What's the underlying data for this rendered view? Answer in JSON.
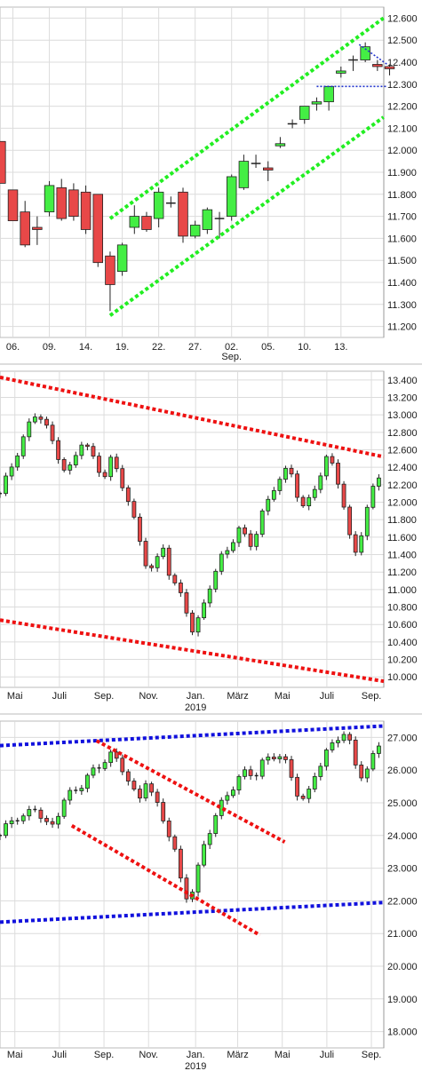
{
  "colors": {
    "up": "#44ee44",
    "down": "#e84848",
    "doji": "#333333",
    "trend_green": "#22ee22",
    "trend_red": "#ee1111",
    "trend_blue": "#1111dd",
    "trend_blue_thin": "#2233cc"
  },
  "chart_data": [
    {
      "type": "candlestick",
      "title": "",
      "ylim": [
        11150,
        12650
      ],
      "y_ticks": [
        "12.600",
        "12.500",
        "12.400",
        "12.300",
        "12.200",
        "12.100",
        "12.000",
        "11.900",
        "11.800",
        "11.700",
        "11.600",
        "11.500",
        "11.400",
        "11.300",
        "11.200"
      ],
      "y_tick_values": [
        12600,
        12500,
        12400,
        12300,
        12200,
        12100,
        12000,
        11900,
        11800,
        11700,
        11600,
        11500,
        11400,
        11300,
        11200
      ],
      "x_labels": [
        {
          "text": "06.",
          "index": 1
        },
        {
          "text": "09.",
          "index": 4
        },
        {
          "text": "14.",
          "index": 7
        },
        {
          "text": "19.",
          "index": 10
        },
        {
          "text": "22.",
          "index": 13
        },
        {
          "text": "27.",
          "index": 16
        },
        {
          "text": "02.",
          "index": 19
        },
        {
          "text": "05.",
          "index": 22
        },
        {
          "text": "10.",
          "index": 25
        },
        {
          "text": "13.",
          "index": 28
        }
      ],
      "x_sublabel": {
        "text": "Sep.",
        "index": 19
      },
      "n_slots": 31,
      "candles": [
        {
          "o": 12040,
          "h": 12040,
          "l": 11850,
          "c": 11850
        },
        {
          "o": 11820,
          "h": 11820,
          "l": 11680,
          "c": 11680
        },
        {
          "o": 11720,
          "h": 11770,
          "l": 11560,
          "c": 11570
        },
        {
          "o": 11650,
          "h": 11700,
          "l": 11570,
          "c": 11640
        },
        {
          "o": 11720,
          "h": 11860,
          "l": 11700,
          "c": 11840
        },
        {
          "o": 11830,
          "h": 11870,
          "l": 11680,
          "c": 11690
        },
        {
          "o": 11820,
          "h": 11850,
          "l": 11680,
          "c": 11700
        },
        {
          "o": 11810,
          "h": 11840,
          "l": 11620,
          "c": 11640
        },
        {
          "o": 11800,
          "h": 11800,
          "l": 11470,
          "c": 11490
        },
        {
          "o": 11520,
          "h": 11540,
          "l": 11270,
          "c": 11390
        },
        {
          "o": 11450,
          "h": 11580,
          "l": 11430,
          "c": 11570
        },
        {
          "o": 11650,
          "h": 11750,
          "l": 11620,
          "c": 11700
        },
        {
          "o": 11700,
          "h": 11720,
          "l": 11630,
          "c": 11640
        },
        {
          "o": 11690,
          "h": 11830,
          "l": 11650,
          "c": 11810
        },
        {
          "o": 11760,
          "h": 11790,
          "l": 11740,
          "c": 11760
        },
        {
          "o": 11810,
          "h": 11830,
          "l": 11580,
          "c": 11610
        },
        {
          "o": 11610,
          "h": 11680,
          "l": 11600,
          "c": 11660
        },
        {
          "o": 11640,
          "h": 11740,
          "l": 11620,
          "c": 11730
        },
        {
          "o": 11690,
          "h": 11720,
          "l": 11600,
          "c": 11690
        },
        {
          "o": 11700,
          "h": 11890,
          "l": 11680,
          "c": 11880
        },
        {
          "o": 11830,
          "h": 11980,
          "l": 11820,
          "c": 11950
        },
        {
          "o": 11940,
          "h": 11980,
          "l": 11920,
          "c": 11940
        },
        {
          "o": 11920,
          "h": 11950,
          "l": 11860,
          "c": 11910
        },
        {
          "o": 12020,
          "h": 12060,
          "l": 12010,
          "c": 12030
        },
        {
          "o": 12120,
          "h": 12140,
          "l": 12100,
          "c": 12120
        },
        {
          "o": 12140,
          "h": 12200,
          "l": 12120,
          "c": 12200
        },
        {
          "o": 12210,
          "h": 12240,
          "l": 12180,
          "c": 12220
        },
        {
          "o": 12220,
          "h": 12290,
          "l": 12180,
          "c": 12290
        },
        {
          "o": 12350,
          "h": 12380,
          "l": 12330,
          "c": 12360
        },
        {
          "o": 12410,
          "h": 12430,
          "l": 12360,
          "c": 12410
        },
        {
          "o": 12410,
          "h": 12490,
          "l": 12400,
          "c": 12470
        }
      ],
      "candles_tail": [
        {
          "o": 12390,
          "h": 12410,
          "l": 12360,
          "c": 12380
        },
        {
          "o": 12380,
          "h": 12390,
          "l": 12340,
          "c": 12370
        }
      ],
      "trendlines": [
        {
          "style": "trend_green",
          "x0": 9.0,
          "y0": 11690,
          "x1": 31.5,
          "y1": 12600
        },
        {
          "style": "trend_green",
          "x0": 9.0,
          "y0": 11250,
          "x1": 31.5,
          "y1": 12150
        },
        {
          "style": "trend_blue_thin",
          "x0": 26.0,
          "y0": 12290,
          "x1": 31.8,
          "y1": 12290
        },
        {
          "style": "trend_blue_thin",
          "x0": 29.5,
          "y0": 12480,
          "x1": 31.8,
          "y1": 12390
        }
      ]
    },
    {
      "type": "candlestick",
      "title": "",
      "ylim": [
        9880,
        13500
      ],
      "y_ticks": [
        "13.400",
        "13.200",
        "13.000",
        "12.800",
        "12.600",
        "12.400",
        "12.200",
        "12.000",
        "11.800",
        "11.600",
        "11.400",
        "11.200",
        "11.000",
        "10.800",
        "10.600",
        "10.400",
        "10.200",
        "10.000"
      ],
      "y_tick_values": [
        13400,
        13200,
        13000,
        12800,
        12600,
        12400,
        12200,
        12000,
        11800,
        11600,
        11400,
        11200,
        11000,
        10800,
        10600,
        10400,
        10200,
        10000
      ],
      "x_labels": [
        {
          "text": "Mai",
          "index": 0.6
        },
        {
          "text": "Juli",
          "index": 2.4
        },
        {
          "text": "Sep.",
          "index": 4.2
        },
        {
          "text": "Nov.",
          "index": 6.0
        },
        {
          "text": "Jan.",
          "index": 7.9
        },
        {
          "text": "März",
          "index": 9.6
        },
        {
          "text": "Mai",
          "index": 11.4
        },
        {
          "text": "Juli",
          "index": 13.2
        },
        {
          "text": "Sep.",
          "index": 15.0
        }
      ],
      "x_sublabel": {
        "text": "2019",
        "index": 7.9
      },
      "months_span": 15.5,
      "series": [
        12100,
        12300,
        12500,
        12700,
        12900,
        13050,
        12900,
        12700,
        12500,
        12300,
        12500,
        12700,
        12600,
        12400,
        12300,
        12500,
        12300,
        12100,
        11800,
        11500,
        11200,
        11300,
        11500,
        11100,
        11000,
        10800,
        10500,
        10700,
        11000,
        11200,
        11400,
        11500,
        11700,
        11600,
        11500,
        11800,
        12000,
        12200,
        12300,
        12400,
        12100,
        11900,
        12100,
        12300,
        12500,
        12400,
        12100,
        11600,
        11400,
        11800,
        12100,
        12300
      ],
      "trendlines": [
        {
          "style": "trend_red",
          "x0": 0,
          "y0": 13430,
          "x1": 15.5,
          "y1": 12520
        },
        {
          "style": "trend_red",
          "x0": 0,
          "y0": 10650,
          "x1": 15.5,
          "y1": 9950
        }
      ]
    },
    {
      "type": "candlestick",
      "title": "",
      "ylim": [
        17500,
        27500
      ],
      "y_ticks": [
        "27.000",
        "26.000",
        "25.000",
        "24.000",
        "23.000",
        "22.000",
        "21.000",
        "20.000",
        "19.000",
        "18.000"
      ],
      "y_tick_values": [
        27000,
        26000,
        25000,
        24000,
        23000,
        22000,
        21000,
        20000,
        19000,
        18000
      ],
      "x_labels": [
        {
          "text": "Mai",
          "index": 0.6
        },
        {
          "text": "Juli",
          "index": 2.4
        },
        {
          "text": "Sep.",
          "index": 4.2
        },
        {
          "text": "Nov.",
          "index": 6.0
        },
        {
          "text": "Jan.",
          "index": 7.9
        },
        {
          "text": "März",
          "index": 9.6
        },
        {
          "text": "Mai",
          "index": 11.4
        },
        {
          "text": "Juli",
          "index": 13.2
        },
        {
          "text": "Sep.",
          "index": 15.0
        }
      ],
      "x_sublabel": {
        "text": "2019",
        "index": 7.9
      },
      "months_span": 15.5,
      "series": [
        24000,
        24300,
        24600,
        24500,
        24700,
        24900,
        24400,
        24200,
        24700,
        25200,
        25300,
        25500,
        25800,
        26000,
        26200,
        26500,
        26300,
        26000,
        25500,
        25000,
        25700,
        25200,
        24700,
        24200,
        23500,
        22400,
        22000,
        22800,
        23700,
        24300,
        24800,
        25200,
        25500,
        25800,
        26000,
        25800,
        26200,
        26400,
        26500,
        26300,
        25800,
        25200,
        25000,
        25800,
        26200,
        26600,
        26900,
        27200,
        26800,
        26000,
        25800,
        26300,
        26800
      ],
      "trendlines": [
        {
          "style": "trend_blue",
          "x0": 0,
          "y0": 26750,
          "x1": 15.5,
          "y1": 27350
        },
        {
          "style": "trend_blue",
          "x0": 0,
          "y0": 21350,
          "x1": 15.5,
          "y1": 21950
        },
        {
          "style": "trend_red",
          "x0": 3.9,
          "y0": 26900,
          "x1": 11.5,
          "y1": 23800
        },
        {
          "style": "trend_red",
          "x0": 2.9,
          "y0": 24300,
          "x1": 10.5,
          "y1": 20950
        }
      ]
    }
  ]
}
